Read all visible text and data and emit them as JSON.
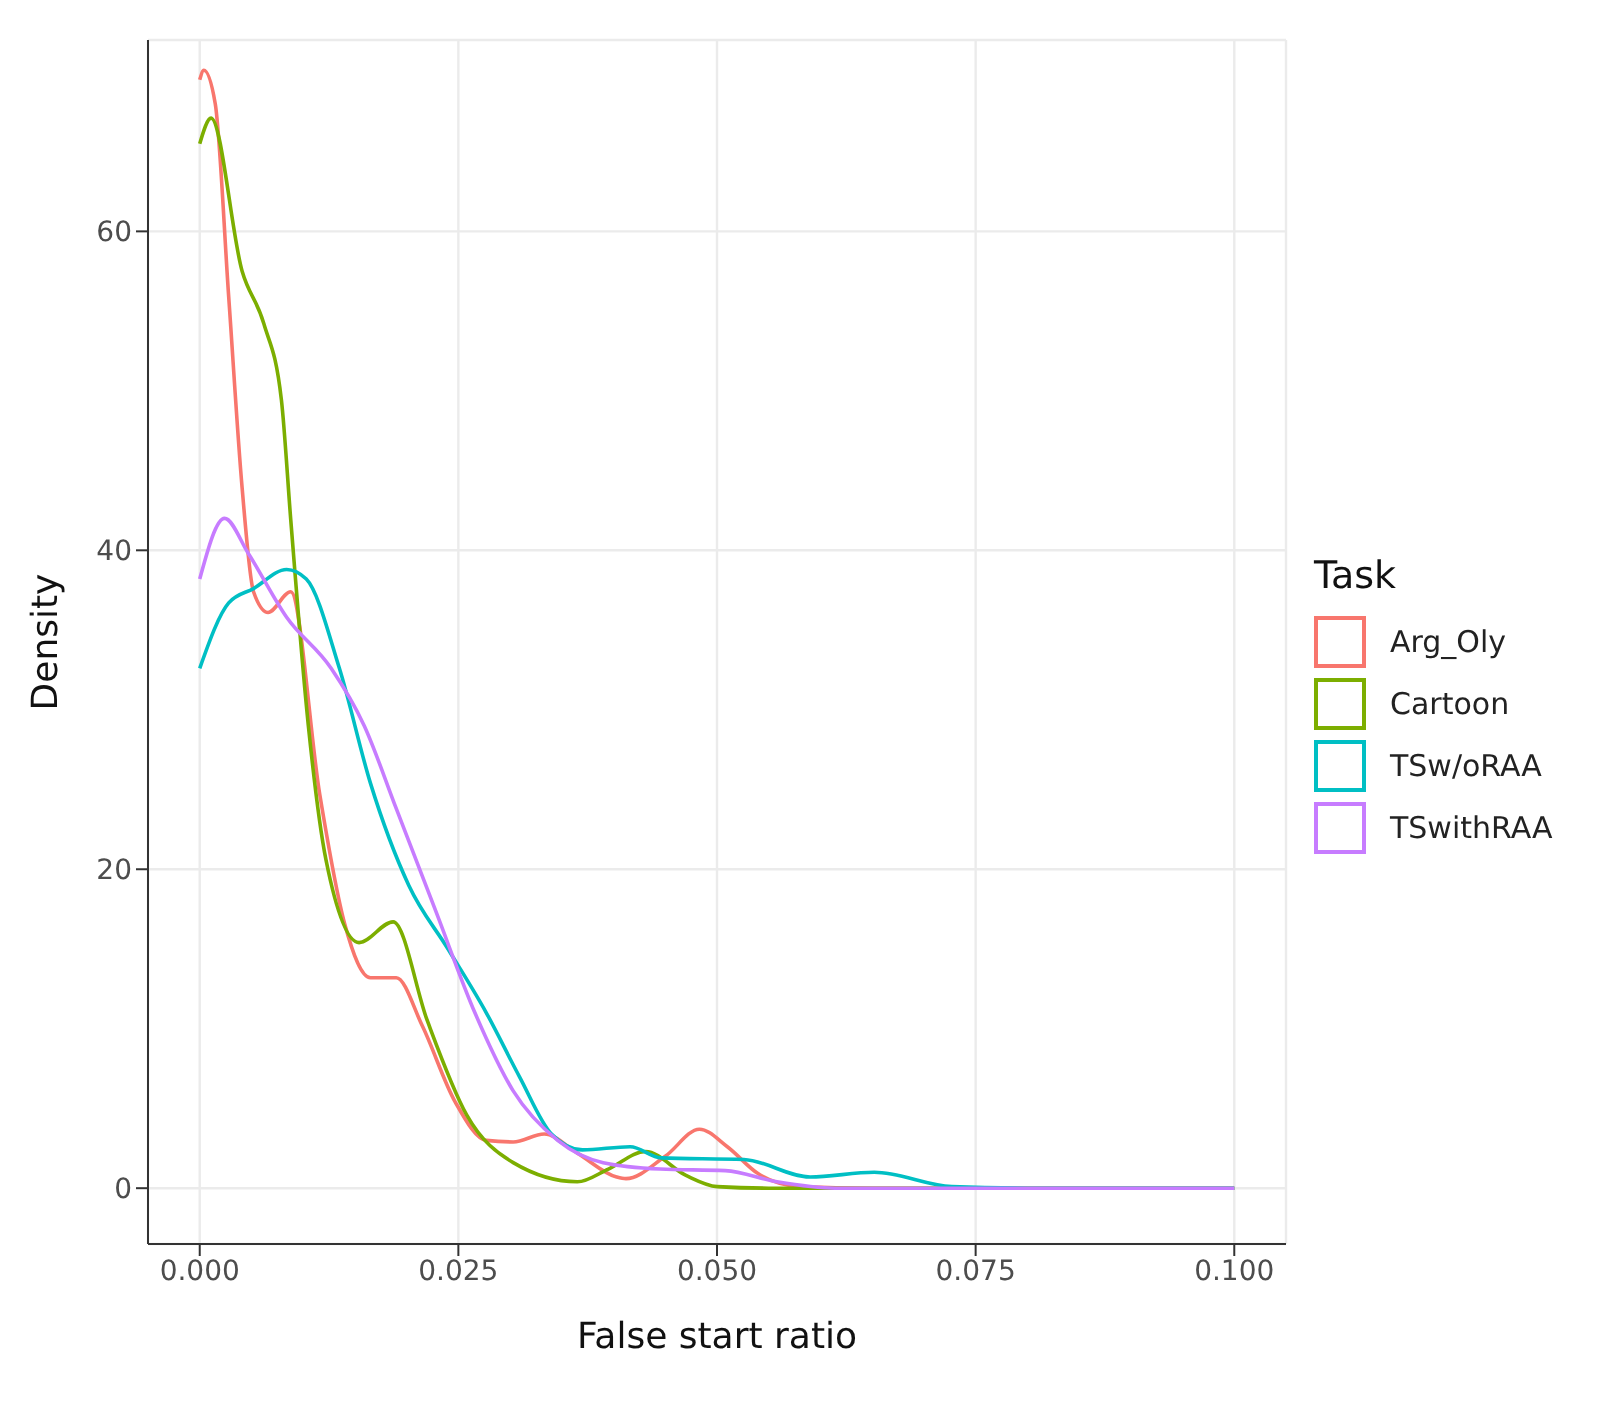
{
  "chart_data": {
    "type": "line",
    "xlabel": "False start ratio",
    "ylabel": "Density",
    "legend_title": "Task",
    "legend": "right",
    "grid": true,
    "marker": "none",
    "line_style": "solid",
    "xlim": [
      -0.005,
      0.105
    ],
    "ylim": [
      -3.5,
      72
    ],
    "xticks": [
      {
        "value": 0,
        "label": "0.000"
      },
      {
        "value": 0.025,
        "label": "0.025"
      },
      {
        "value": 0.05,
        "label": "0.050"
      },
      {
        "value": 0.075,
        "label": "0.075"
      },
      {
        "value": 0.1,
        "label": "0.100"
      }
    ],
    "yticks": [
      0,
      20,
      40,
      60
    ],
    "series": [
      {
        "name": "Arg_Oly",
        "color": "#f8766d",
        "x": [
          0,
          0.0004,
          0.0015,
          0.0028,
          0.0041,
          0.0052,
          0.0066,
          0.0088,
          0.0116,
          0.014,
          0.0165,
          0.019,
          0.0215,
          0.0247,
          0.0277,
          0.0303,
          0.0333,
          0.0365,
          0.0403,
          0.0412,
          0.045,
          0.0483,
          0.051,
          0.054,
          0.058,
          0.065,
          0.1
        ],
        "values": [
          69.5,
          70.1,
          68,
          55.9,
          43.9,
          37.4,
          36.1,
          37.4,
          24.7,
          16.6,
          13.2,
          13.2,
          10.2,
          5.4,
          3,
          2.9,
          3.4,
          2.2,
          0.7,
          0.6,
          2,
          3.7,
          2.6,
          0.9,
          0.1,
          0,
          0
        ]
      },
      {
        "name": "Cartoon",
        "color": "#7cae00",
        "x": [
          0,
          0.0011,
          0.0041,
          0.0062,
          0.0079,
          0.0088,
          0.0105,
          0.0122,
          0.0154,
          0.0187,
          0.022,
          0.0258,
          0.0303,
          0.0365,
          0.0395,
          0.0431,
          0.047,
          0.05,
          0.055,
          0.1
        ],
        "values": [
          65.5,
          67.1,
          57.5,
          54.2,
          49.4,
          41.9,
          29,
          20.6,
          15.4,
          16.7,
          10.5,
          4.6,
          1.6,
          0.4,
          1.2,
          2.3,
          0.8,
          0.1,
          0,
          0
        ]
      },
      {
        "name": "TSw/oRAA",
        "color": "#00bfc4",
        "x": [
          0,
          0.0028,
          0.0052,
          0.0084,
          0.0103,
          0.0135,
          0.0165,
          0.0202,
          0.024,
          0.0277,
          0.0309,
          0.034,
          0.037,
          0.0416,
          0.0446,
          0.0526,
          0.059,
          0.0652,
          0.0727,
          0.08,
          0.1
        ],
        "values": [
          32.6,
          36.7,
          37.6,
          38.8,
          38.2,
          32.6,
          25.4,
          19,
          15,
          11,
          7,
          3.4,
          2.4,
          2.6,
          1.9,
          1.8,
          0.7,
          1,
          0.1,
          0,
          0
        ]
      },
      {
        "name": "TSwithRAA",
        "color": "#c77cff",
        "x": [
          0,
          0.0024,
          0.0047,
          0.0084,
          0.0127,
          0.0159,
          0.019,
          0.0228,
          0.0266,
          0.0303,
          0.0346,
          0.039,
          0.0445,
          0.0508,
          0.0558,
          0.0614,
          0.1
        ],
        "values": [
          38.2,
          42,
          39.8,
          35.8,
          32.6,
          29,
          23.8,
          17.4,
          11,
          6.1,
          3,
          1.6,
          1.2,
          1.1,
          0.4,
          0,
          0
        ]
      }
    ]
  }
}
